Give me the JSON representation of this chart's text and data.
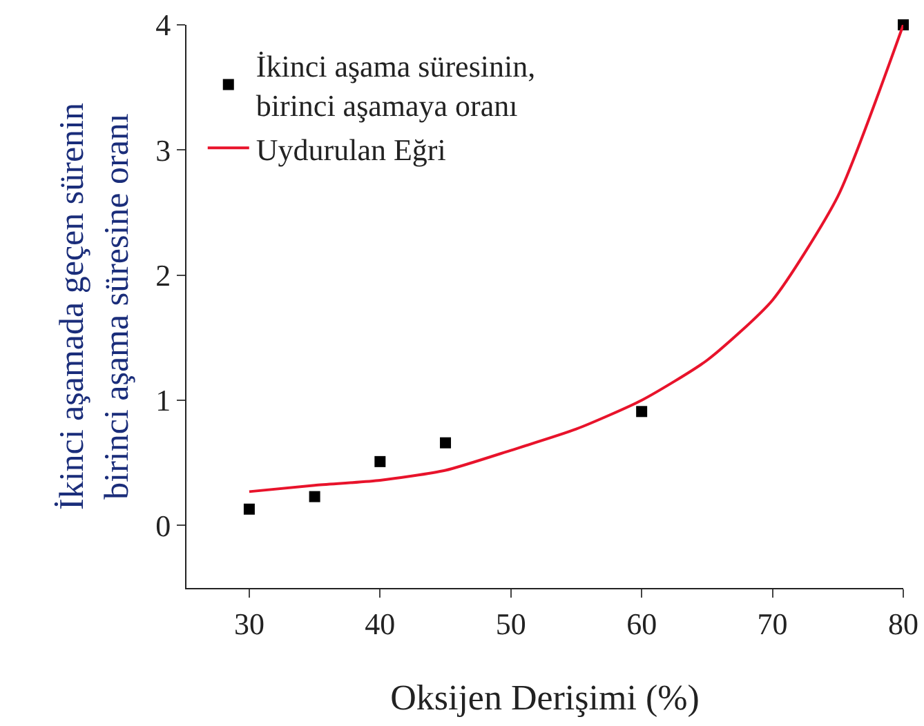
{
  "chart_data": {
    "type": "scatter",
    "xlabel": "Oksijen Derişimi (%)",
    "ylabel": "İkinci aşamada geçen sürenin\nbirinci aşama süresine oranı",
    "xlim": [
      25.2,
      80
    ],
    "ylim": [
      -0.5,
      4
    ],
    "xticks": [
      30,
      40,
      50,
      60,
      70,
      80
    ],
    "yticks": [
      0,
      1,
      2,
      3,
      4
    ],
    "grid": false,
    "legend": "top left",
    "series": [
      {
        "name": "İkinci aşama süresinin,\nbirinci aşamaya oranı",
        "marker": "square",
        "color": "#000000",
        "x": [
          30,
          35,
          40,
          45,
          60,
          80
        ],
        "values": [
          0.13,
          0.23,
          0.51,
          0.66,
          0.91,
          4.0
        ]
      },
      {
        "name": "Uydurulan Eğri",
        "type": "line",
        "marker": "none",
        "color": "#e8132b",
        "x": [
          30,
          35,
          40,
          45,
          50,
          55,
          60,
          65,
          70,
          75,
          80
        ],
        "values": [
          0.27,
          0.32,
          0.36,
          0.44,
          0.6,
          0.77,
          1.0,
          1.32,
          1.8,
          2.63,
          4.0
        ]
      }
    ]
  }
}
